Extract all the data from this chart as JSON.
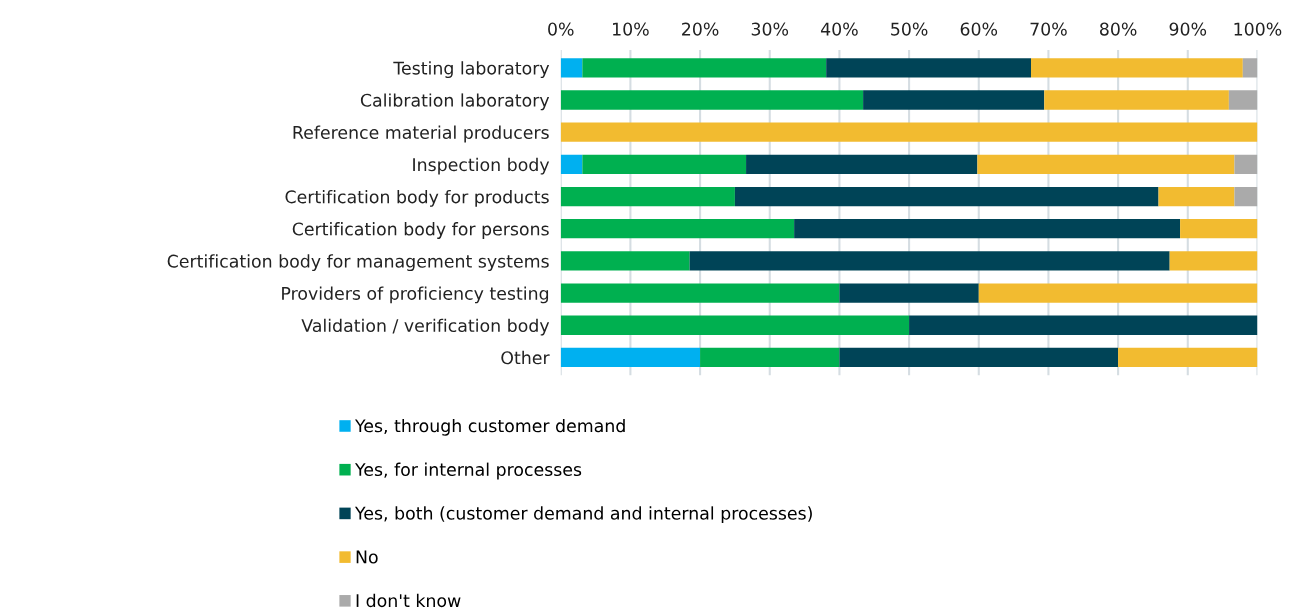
{
  "chart_data": {
    "type": "bar",
    "orientation": "horizontal",
    "stacked": true,
    "categories": [
      "Testing laboratory",
      "Calibration laboratory",
      "Reference material producers",
      "Inspection body",
      "Certification body for products",
      "Certification body for persons",
      "Certification body for management systems",
      "Providers of proficiency testing",
      "Validation / verification body",
      "Other"
    ],
    "series": [
      {
        "name": "Yes, through customer demand",
        "color": "#00b0f0",
        "values": [
          3.1,
          0,
          0,
          3.1,
          0,
          0,
          0,
          0,
          0,
          20
        ]
      },
      {
        "name": "Yes, for internal processes",
        "color": "#00b050",
        "values": [
          35.0,
          43.4,
          0,
          23.5,
          25.0,
          33.5,
          18.5,
          40,
          50,
          20
        ]
      },
      {
        "name": "Yes, both (customer demand and internal processes)",
        "color": "#004457",
        "values": [
          29.4,
          26.0,
          0,
          33.2,
          60.8,
          55.4,
          68.9,
          20,
          50,
          40
        ]
      },
      {
        "name": "No",
        "color": "#f2bb30",
        "values": [
          30.4,
          26.5,
          100,
          36.9,
          10.9,
          11.1,
          12.6,
          40,
          0,
          20
        ]
      },
      {
        "name": "I don't know",
        "color": "#aaaaaa",
        "values": [
          2.1,
          4.1,
          0,
          3.3,
          3.3,
          0,
          0,
          0,
          0,
          0
        ]
      }
    ],
    "xlim": [
      0,
      100
    ],
    "xticks": [
      {
        "value": 0,
        "label": "0%"
      },
      {
        "value": 10,
        "label": "10%"
      },
      {
        "value": 20,
        "label": "20%"
      },
      {
        "value": 30,
        "label": "30%"
      },
      {
        "value": 40,
        "label": "40%"
      },
      {
        "value": 50,
        "label": "50%"
      },
      {
        "value": 60,
        "label": "60%"
      },
      {
        "value": 70,
        "label": "70%"
      },
      {
        "value": 80,
        "label": "80%"
      },
      {
        "value": 90,
        "label": "90%"
      },
      {
        "value": 100,
        "label": "100%"
      }
    ],
    "grid": "x",
    "legend": "bottom"
  }
}
